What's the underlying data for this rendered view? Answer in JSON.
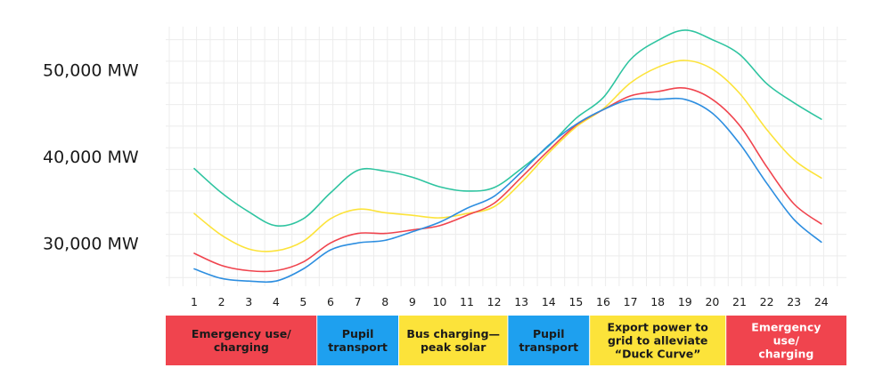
{
  "chart_data": {
    "type": "line",
    "title": "",
    "xlabel": "",
    "ylabel": "",
    "x": [
      1,
      2,
      3,
      4,
      5,
      6,
      7,
      8,
      9,
      10,
      11,
      12,
      13,
      14,
      15,
      16,
      17,
      18,
      19,
      20,
      21,
      22,
      23,
      24
    ],
    "ylim": [
      25000,
      55000
    ],
    "yticks": [
      {
        "value": 30000,
        "label": "30,000 MW"
      },
      {
        "value": 40000,
        "label": "40,000 MW"
      },
      {
        "value": 50000,
        "label": "50,000 MW"
      }
    ],
    "grid": true,
    "legend": "none",
    "series": [
      {
        "color": "#2ec4a0",
        "values": [
          38600,
          35800,
          33600,
          32000,
          32800,
          35800,
          38400,
          38300,
          37600,
          36500,
          36000,
          36400,
          38600,
          41200,
          44400,
          46800,
          51200,
          53400,
          54600,
          53500,
          51800,
          48400,
          46200,
          44300
        ]
      },
      {
        "color": "#fce33a",
        "values": [
          33400,
          30900,
          29300,
          29100,
          30200,
          32800,
          33900,
          33500,
          33200,
          32900,
          33400,
          34200,
          37000,
          40400,
          43400,
          45500,
          48500,
          50300,
          51100,
          50100,
          47300,
          43100,
          39600,
          37500
        ]
      },
      {
        "color": "#f0444e",
        "values": [
          28800,
          27400,
          26800,
          26800,
          27800,
          30000,
          31100,
          31100,
          31500,
          32000,
          33200,
          34600,
          37600,
          40700,
          43600,
          45400,
          47000,
          47500,
          47900,
          46600,
          43600,
          38800,
          34500,
          32200
        ]
      },
      {
        "color": "#2d8ee0",
        "values": [
          27000,
          25900,
          25600,
          25600,
          27000,
          29200,
          30000,
          30300,
          31300,
          32400,
          34000,
          35400,
          38200,
          41300,
          43700,
          45400,
          46600,
          46600,
          46600,
          45000,
          41500,
          36900,
          32700,
          30100
        ]
      }
    ],
    "bands": [
      {
        "from": 1,
        "to": 5,
        "label": [
          "Emergency use/",
          "charging"
        ],
        "color": "#f0444e",
        "text_color": "#1a1a1a"
      },
      {
        "from": 6,
        "to": 8,
        "label": [
          "Pupil",
          "transport"
        ],
        "color": "#1ea0ef",
        "text_color": "#1a1a1a"
      },
      {
        "from": 9,
        "to": 12,
        "label": [
          "Bus charging—",
          "peak solar"
        ],
        "color": "#fce33a",
        "text_color": "#1a1a1a"
      },
      {
        "from": 13,
        "to": 15,
        "label": [
          "Pupil",
          "transport"
        ],
        "color": "#1ea0ef",
        "text_color": "#1a1a1a"
      },
      {
        "from": 16,
        "to": 20,
        "label": [
          "Export power to",
          "grid to alleviate",
          "“Duck Curve”"
        ],
        "color": "#fce33a",
        "text_color": "#1a1a1a"
      },
      {
        "from": 21,
        "to": 24,
        "label": [
          "Emergency",
          "use/",
          "charging"
        ],
        "color": "#f0444e",
        "text_color": "#ffffff"
      }
    ]
  }
}
